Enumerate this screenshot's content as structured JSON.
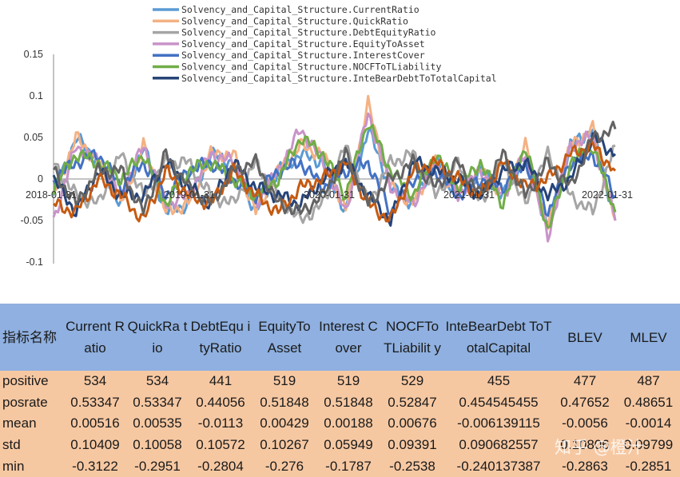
{
  "chart_data": {
    "type": "line",
    "legend_position": "top-center",
    "grid": false,
    "ylim": [
      -0.1,
      0.15
    ],
    "yticks": [
      "0.15",
      "0.1",
      "0.05",
      "0",
      "-0.05",
      "-0.1"
    ],
    "xticks": [
      "2018-01-31",
      "2019-01-31",
      "2020-01-31",
      "2021-01-31",
      "2022-01-31"
    ],
    "x": [
      "2018-01-31",
      "2018-03-31",
      "2018-05-31",
      "2018-07-31",
      "2018-09-30",
      "2018-11-30",
      "2019-01-31",
      "2019-03-31",
      "2019-05-31",
      "2019-07-31",
      "2019-09-30",
      "2019-11-30",
      "2020-01-31",
      "2020-03-31",
      "2020-05-31",
      "2020-07-31",
      "2020-09-30",
      "2020-11-30",
      "2021-01-31",
      "2021-03-31",
      "2021-05-31",
      "2021-07-31",
      "2021-09-30",
      "2021-11-30",
      "2022-01-31",
      "2022-03-31"
    ],
    "series": [
      {
        "name": "Solvency_and_Capital_Structure.CurrentRatio",
        "color": "#5b9bd5",
        "values": [
          -0.02,
          0.05,
          0.02,
          -0.03,
          0.04,
          -0.04,
          -0.03,
          0.03,
          0.02,
          -0.04,
          0.01,
          0.03,
          0.02,
          -0.04,
          0.06,
          -0.01,
          -0.03,
          0.02,
          -0.02,
          0.01,
          -0.02,
          0.03,
          -0.06,
          0.04,
          0.06,
          -0.05
        ]
      },
      {
        "name": "Solvency_and_Capital_Structure.QuickRatio",
        "color": "#f4b183",
        "values": [
          -0.02,
          0.05,
          0.02,
          -0.03,
          0.04,
          -0.04,
          -0.03,
          0.03,
          0.03,
          -0.04,
          0.01,
          0.04,
          0.03,
          -0.04,
          0.09,
          -0.01,
          -0.03,
          0.02,
          -0.02,
          0.01,
          -0.02,
          0.04,
          -0.06,
          0.04,
          0.06,
          -0.05
        ]
      },
      {
        "name": "Solvency_and_Capital_Structure.DebtEquityRatio",
        "color": "#a5a5a5",
        "values": [
          0.02,
          -0.02,
          -0.03,
          0.03,
          -0.02,
          0.02,
          0.02,
          -0.02,
          -0.03,
          0.02,
          -0.02,
          -0.05,
          -0.03,
          0.04,
          -0.03,
          0.02,
          0.03,
          -0.02,
          0.02,
          -0.03,
          0.02,
          -0.03,
          0.03,
          -0.02,
          -0.04,
          0.04
        ]
      },
      {
        "name": "Solvency_and_Capital_Structure.EquityToAsset",
        "color": "#c993c9",
        "values": [
          -0.05,
          0.04,
          0.02,
          -0.02,
          0.04,
          -0.03,
          -0.02,
          0.03,
          0.02,
          -0.03,
          0.01,
          0.06,
          0.02,
          -0.04,
          0.08,
          -0.01,
          -0.03,
          0.02,
          -0.02,
          0.01,
          -0.02,
          0.03,
          -0.07,
          0.04,
          0.05,
          -0.05
        ]
      },
      {
        "name": "Solvency_and_Capital_Structure.InterestCover",
        "color": "#4472c4",
        "values": [
          0.0,
          0.02,
          0.03,
          -0.01,
          0.02,
          -0.02,
          0.01,
          0.02,
          0.0,
          -0.02,
          0.01,
          0.02,
          -0.01,
          0.01,
          0.02,
          -0.04,
          0.0,
          0.01,
          -0.02,
          0.0,
          -0.01,
          0.02,
          -0.04,
          0.02,
          0.03,
          -0.02
        ]
      },
      {
        "name": "Solvency_and_Capital_Structure.NOCFToTLiability",
        "color": "#70ad47",
        "values": [
          -0.01,
          0.03,
          0.02,
          0.0,
          0.03,
          -0.03,
          0.01,
          0.02,
          0.0,
          -0.02,
          0.0,
          0.05,
          0.03,
          -0.02,
          0.07,
          0.01,
          -0.02,
          0.03,
          -0.01,
          0.02,
          -0.03,
          0.04,
          -0.06,
          0.02,
          0.04,
          -0.04
        ]
      },
      {
        "name": "Solvency_and_Capital_Structure.InteBearDebtToTotalCapital",
        "color": "#264478",
        "values": [
          0.0,
          -0.04,
          0.01,
          -0.02,
          -0.02,
          0.02,
          -0.01,
          -0.03,
          0.02,
          -0.01,
          -0.02,
          -0.03,
          0.0,
          0.02,
          -0.02,
          -0.05,
          0.02,
          0.01,
          0.0,
          -0.02,
          0.01,
          0.02,
          -0.02,
          0.0,
          0.05,
          0.03
        ]
      },
      {
        "name": "",
        "color": "#c55a11",
        "values": [
          -0.03,
          -0.04,
          0.0,
          -0.02,
          -0.05,
          0.01,
          -0.02,
          -0.03,
          0.01,
          -0.02,
          -0.04,
          -0.01,
          0.0,
          0.02,
          -0.03,
          -0.05,
          0.01,
          0.02,
          0.0,
          -0.02,
          0.02,
          -0.01,
          0.0,
          0.03,
          0.04,
          0.01
        ]
      },
      {
        "name": "",
        "color": "#636363",
        "values": [
          0.01,
          -0.03,
          0.01,
          0.01,
          -0.04,
          0.03,
          -0.01,
          -0.03,
          0.01,
          0.02,
          -0.03,
          -0.04,
          -0.02,
          0.03,
          -0.03,
          0.0,
          0.02,
          -0.01,
          0.02,
          -0.02,
          0.03,
          -0.02,
          0.02,
          -0.01,
          0.05,
          0.06
        ]
      }
    ]
  },
  "table": {
    "headers": [
      "指标名称",
      "Current Ratio",
      "QuickRa tio",
      "DebtEqu ityRatio",
      "EquityTo Asset",
      "Interest Cover",
      "NOCFTo TLiabilit y",
      "InteBearDebt ToTotalCapital",
      "BLEV",
      "MLEV"
    ],
    "rows": [
      [
        "positive",
        "534",
        "534",
        "441",
        "519",
        "519",
        "529",
        "455",
        "477",
        "487"
      ],
      [
        "posrate",
        "0.53347",
        "0.53347",
        "0.44056",
        "0.51848",
        "0.51848",
        "0.52847",
        "0.454545455",
        "0.47652",
        "0.48651"
      ],
      [
        "mean",
        "0.00516",
        "0.00535",
        "-0.0113",
        "0.00429",
        "0.00188",
        "0.00676",
        "-0.006139115",
        "-0.0056",
        "-0.0014"
      ],
      [
        "std",
        "0.10409",
        "0.10058",
        "0.10572",
        "0.10267",
        "0.05949",
        "0.09391",
        "0.090682557",
        "0.10806",
        "0.09799"
      ],
      [
        "min",
        "-0.3122",
        "-0.2951",
        "-0.2804",
        "-0.276",
        "-0.1787",
        "-0.2538",
        "-0.240137387",
        "-0.2863",
        "-0.2851"
      ]
    ]
  },
  "watermark": "知乎 @橙汁"
}
